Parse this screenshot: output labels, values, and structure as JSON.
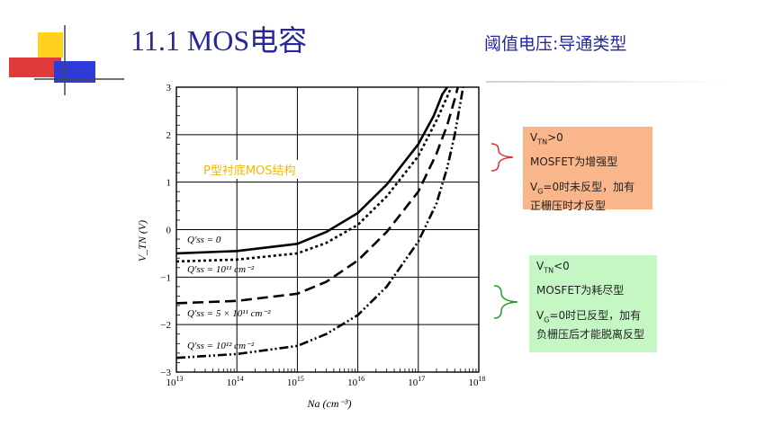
{
  "header": {
    "title": "11.1 MOS电容",
    "subtitle": "阈值电压:导通类型"
  },
  "chart_subtitle": "P型衬底MOS结构",
  "chart_data": {
    "type": "line",
    "xscale": "log",
    "xlim": [
      10000000000000.0,
      1e+18
    ],
    "ylim": [
      -3,
      3
    ],
    "xlabel": "Na (cm⁻³)",
    "ylabel": "V_TN (V)",
    "grid": true,
    "x_ticks": [
      {
        "base": "10",
        "exp": "13"
      },
      {
        "base": "10",
        "exp": "14"
      },
      {
        "base": "10",
        "exp": "15"
      },
      {
        "base": "10",
        "exp": "16"
      },
      {
        "base": "10",
        "exp": "17"
      },
      {
        "base": "10",
        "exp": "18"
      }
    ],
    "y_ticks": [
      "3",
      "2",
      "1",
      "0",
      "−1",
      "−2",
      "−3"
    ],
    "series": [
      {
        "name": "Q′ss = 0",
        "style": "solid",
        "x": [
          10000000000000.0,
          100000000000000.0,
          1000000000000000.0,
          3000000000000000.0,
          1e+16,
          3e+16,
          1e+17,
          1.8e+17,
          2.5e+17,
          3e+17
        ],
        "y": [
          -0.5,
          -0.45,
          -0.3,
          -0.05,
          0.35,
          0.95,
          1.8,
          2.4,
          2.85,
          3.0
        ]
      },
      {
        "name": "Q′ss = 10¹¹ cm⁻²",
        "style": "dot",
        "x": [
          10000000000000.0,
          100000000000000.0,
          1000000000000000.0,
          3000000000000000.0,
          1e+16,
          3e+16,
          1e+17,
          2e+17,
          3e+17,
          3.5e+17
        ],
        "y": [
          -0.67,
          -0.63,
          -0.5,
          -0.28,
          0.1,
          0.7,
          1.55,
          2.3,
          2.8,
          3.0
        ]
      },
      {
        "name": "Q′ss = 5 × 10¹¹ cm⁻²",
        "style": "dash",
        "x": [
          10000000000000.0,
          100000000000000.0,
          1000000000000000.0,
          3000000000000000.0,
          1e+16,
          3e+16,
          1e+17,
          2e+17,
          3e+17,
          4e+17,
          4.5e+17
        ],
        "y": [
          -1.55,
          -1.5,
          -1.35,
          -1.1,
          -0.65,
          -0.05,
          0.8,
          1.6,
          2.2,
          2.75,
          3.0
        ]
      },
      {
        "name": "Q′ss = 10¹² cm⁻²",
        "style": "dashdot",
        "x": [
          10000000000000.0,
          100000000000000.0,
          1000000000000000.0,
          3000000000000000.0,
          1e+16,
          3e+16,
          1e+17,
          2e+17,
          3e+17,
          4e+17,
          5.5e+17
        ],
        "y": [
          -2.7,
          -2.62,
          -2.45,
          -2.2,
          -1.8,
          -1.2,
          -0.25,
          0.55,
          1.3,
          2.0,
          3.0
        ]
      }
    ]
  },
  "annotations": [
    {
      "lines": [
        {
          "pre": "V",
          "sub": "TN",
          "post": ">0"
        },
        {
          "pre": "MOSFET为增强型",
          "sub": "",
          "post": ""
        },
        {
          "pre": "V",
          "sub": "G",
          "post": "=0时未反型，加有正栅压时才反型"
        }
      ]
    },
    {
      "lines": [
        {
          "pre": "V",
          "sub": "TN",
          "post": "<0"
        },
        {
          "pre": "MOSFET为耗尽型",
          "sub": "",
          "post": ""
        },
        {
          "pre": "V",
          "sub": "G",
          "post": "=0时已反型，加有负栅压后才能脱离反型"
        }
      ]
    }
  ],
  "colors": {
    "title": "#27279a",
    "box_enhance": "#f9b68a",
    "box_deplete": "#c5f7c5",
    "bracket_enhance": "#e03030",
    "bracket_deplete": "#2a9a2a",
    "chart_subtitle": "#f2b800"
  }
}
